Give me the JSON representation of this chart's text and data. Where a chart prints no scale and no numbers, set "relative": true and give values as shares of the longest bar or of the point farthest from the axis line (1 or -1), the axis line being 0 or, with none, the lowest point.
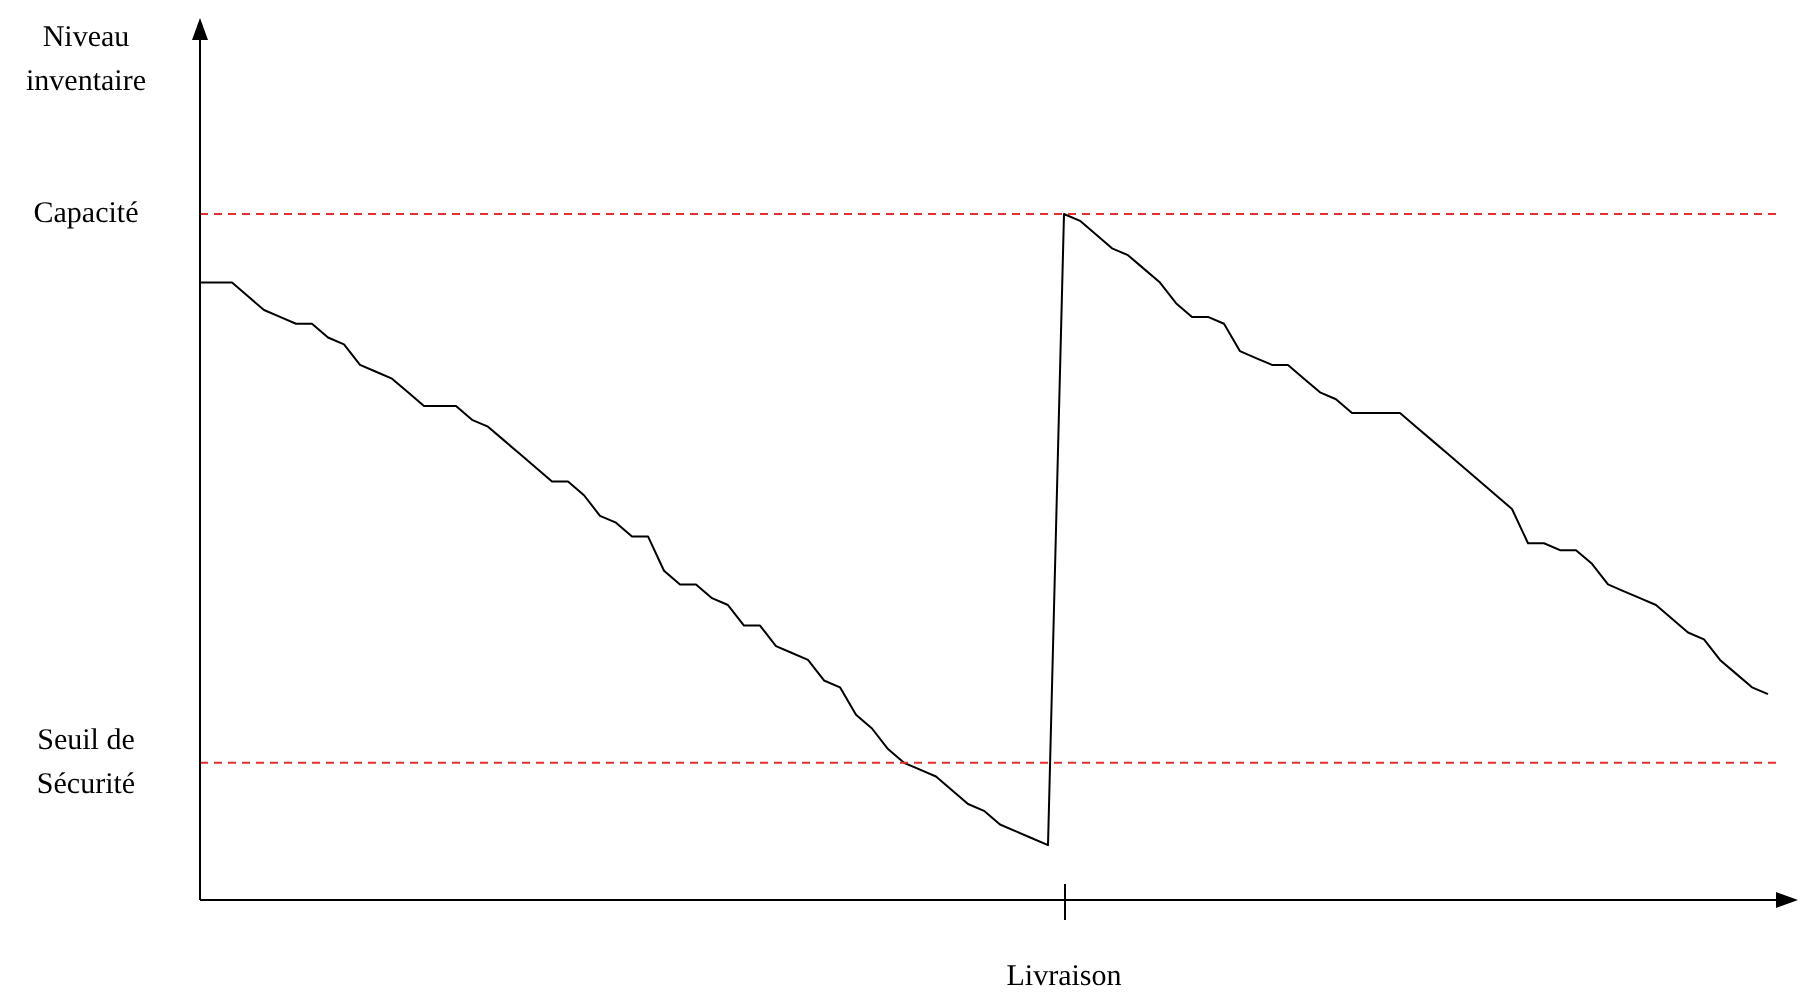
{
  "chart_data": {
    "type": "line",
    "relative": true,
    "ylabel": "Niveau inventaire",
    "xlabel": "Livraison",
    "legend": false,
    "marker": "none",
    "line_style": "solid",
    "categories": [
      null,
      null,
      null,
      null,
      null,
      null,
      null,
      null,
      null,
      null,
      null,
      null,
      null,
      null,
      null,
      null,
      null,
      null,
      null,
      null,
      null,
      null,
      null,
      null,
      null,
      null,
      null,
      null,
      null,
      null,
      null,
      null,
      null,
      null,
      null,
      null,
      null,
      null,
      null,
      null,
      null,
      null,
      null,
      null,
      null,
      null,
      null,
      null,
      null,
      null,
      null,
      null,
      null,
      null,
      null,
      null,
      null,
      null,
      null,
      null,
      null,
      null,
      null,
      null,
      null,
      null,
      null,
      null,
      null,
      null,
      null,
      null,
      null,
      null,
      null,
      null,
      null,
      null,
      null,
      null,
      null,
      null,
      null,
      null,
      null,
      null,
      null,
      null,
      null,
      null,
      null,
      null,
      null,
      null,
      null,
      null,
      null,
      null,
      null
    ],
    "ref_lines": [
      {
        "axis": "y",
        "value": 1,
        "label": "Capacité",
        "color": "#e03030",
        "line_style": "dashed"
      },
      {
        "axis": "y",
        "value": 0.2,
        "label": "Seuil de Sécurité",
        "color": "#e03030",
        "line_style": "dashed"
      }
    ],
    "series": [
      {
        "color": "#000000",
        "values": [
          0.9,
          0.9,
          0.9,
          0.88,
          0.86,
          0.85,
          0.84,
          0.84,
          0.82,
          0.81,
          0.78,
          0.77,
          0.76,
          0.74,
          0.72,
          0.72,
          0.72,
          0.7,
          0.69,
          0.67,
          0.65,
          0.63,
          0.61,
          0.61,
          0.59,
          0.56,
          0.55,
          0.53,
          0.53,
          0.48,
          0.46,
          0.46,
          0.44,
          0.43,
          0.4,
          0.4,
          0.37,
          0.36,
          0.35,
          0.32,
          0.31,
          0.27,
          0.25,
          0.22,
          0.2,
          0.19,
          0.18,
          0.16,
          0.14,
          0.13,
          0.11,
          0.1,
          0.09,
          0.08,
          1,
          0.99,
          0.97,
          0.95,
          0.94,
          0.92,
          0.9,
          0.87,
          0.85,
          0.85,
          0.84,
          0.8,
          0.79,
          0.78,
          0.78,
          0.76,
          0.74,
          0.73,
          0.71,
          0.71,
          0.71,
          0.71,
          0.69,
          0.67,
          0.65,
          0.63,
          0.61,
          0.59,
          0.57,
          0.52,
          0.52,
          0.51,
          0.51,
          0.49,
          0.46,
          0.45,
          0.44,
          0.43,
          0.41,
          0.39,
          0.38,
          0.35,
          0.33,
          0.31,
          0.3
        ]
      }
    ]
  }
}
